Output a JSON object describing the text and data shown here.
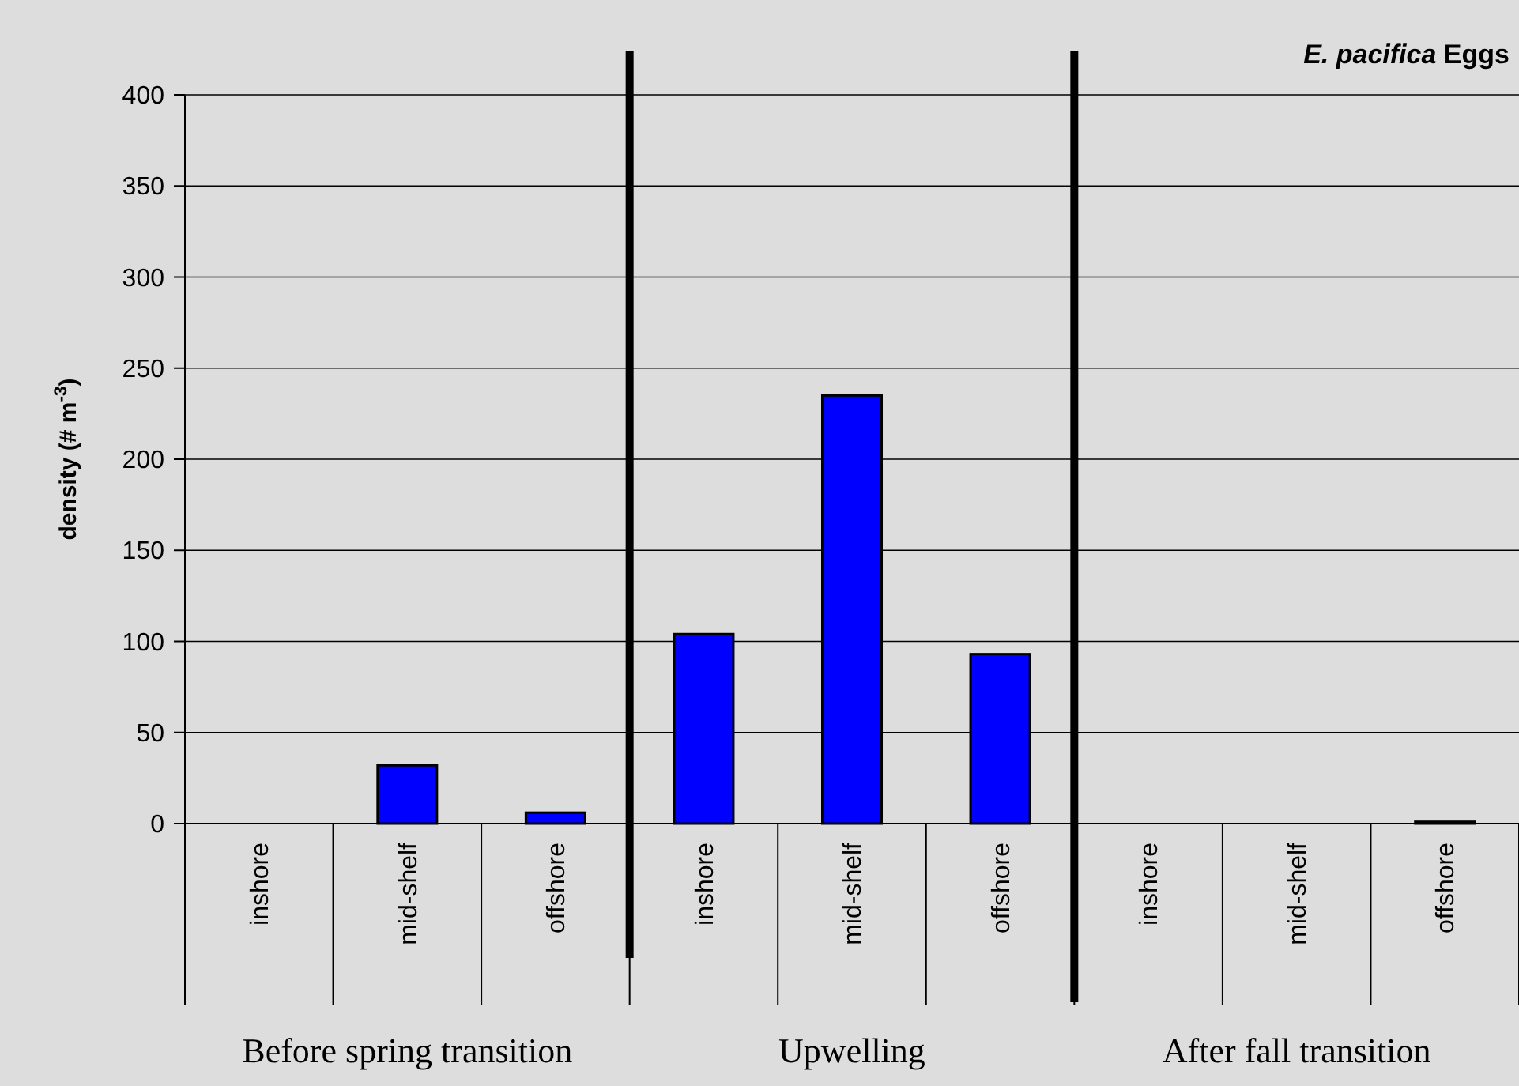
{
  "chart_data": {
    "type": "bar",
    "title": "E. pacifica Eggs",
    "ylabel": "density (# m$^{-3}$)",
    "categories": [
      "inshore",
      "mid-shelf",
      "offshore",
      "inshore",
      "mid-shelf",
      "offshore",
      "inshore",
      "mid-shelf",
      "offshore"
    ],
    "values": [
      0,
      32,
      6,
      104,
      235,
      93,
      0,
      0,
      1
    ],
    "color": "#0000ff",
    "ylim": [
      0,
      400
    ],
    "yticks": [
      0,
      50,
      100,
      150,
      200,
      250,
      300,
      350,
      400
    ],
    "grid": "y",
    "annotations": [
      "Before spring transition",
      "Upwelling",
      "After fall transition"
    ]
  }
}
